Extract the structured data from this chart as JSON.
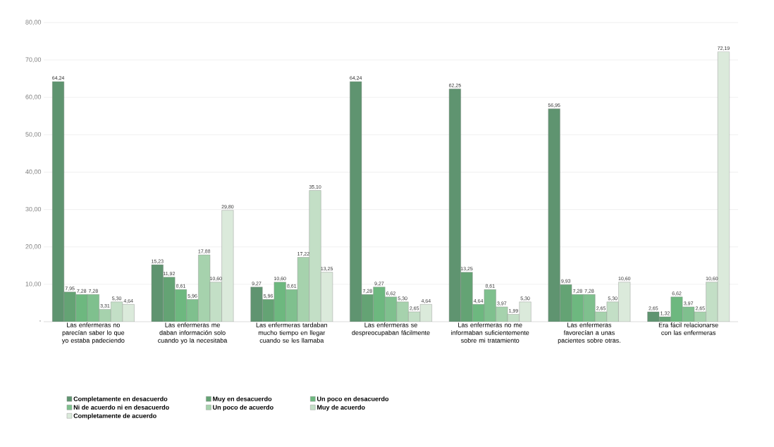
{
  "chart_data": {
    "type": "bar",
    "categories": [
      "Las enfermeras no parecían saber lo que yo estaba padeciendo",
      "Las enfermeras me daban información solo cuando yo la necesitaba",
      "Las enfermeras tardaban mucho tiempo en llegar cuando se les llamaba",
      "Las enfermeras se despreocupaban fácilmente",
      "Las enfermeras no me informaban suficientemente sobre mi tratamiento",
      "Las enfermeras favorecían a unas pacientes sobre otras.",
      "Era fácil relacionarse con las enfermeras"
    ],
    "series": [
      {
        "name": "Completamente en desacuerdo",
        "color": "#5f9470",
        "values": [
          64.24,
          15.23,
          9.27,
          64.24,
          62.25,
          56.95,
          2.65
        ],
        "value_labels": [
          "64,24",
          "15,23",
          "9,27",
          "64,24",
          "62,25",
          "56,95",
          "2,65"
        ]
      },
      {
        "name": "Muy en desacuerdo",
        "color": "#64a374",
        "values": [
          7.95,
          11.92,
          5.96,
          7.28,
          13.25,
          9.93,
          1.32
        ],
        "value_labels": [
          "7,95",
          "11,92",
          "5,96",
          "7,28",
          "13,25",
          "9,93",
          "1,32"
        ]
      },
      {
        "name": "Un poco en desacuerdo",
        "color": "#6db87f",
        "values": [
          7.28,
          8.61,
          10.6,
          9.27,
          4.64,
          7.28,
          6.62
        ],
        "value_labels": [
          "7,28",
          "8,61",
          "10,60",
          "9,27",
          "4,64",
          "7,28",
          "6,62"
        ]
      },
      {
        "name": "Ni de acuerdo ni en desacuerdo",
        "color": "#7fc08e",
        "values": [
          7.28,
          5.96,
          8.61,
          6.62,
          8.61,
          7.28,
          3.97
        ],
        "value_labels": [
          "7,28",
          "5,96",
          "8,61",
          "6,62",
          "8,61",
          "7,28",
          "3,97"
        ]
      },
      {
        "name": "Un poco de acuerdo",
        "color": "#a6d2ad",
        "values": [
          3.31,
          17.88,
          17.22,
          5.3,
          3.97,
          2.65,
          2.65
        ],
        "value_labels": [
          "3,31",
          "17,88",
          "17,22",
          "5,30",
          "3,97",
          "2,65",
          "2,65"
        ]
      },
      {
        "name": "Muy de acuerdo",
        "color": "#c3dfc6",
        "values": [
          5.3,
          10.6,
          35.1,
          2.65,
          1.99,
          5.3,
          10.6
        ],
        "value_labels": [
          "5,30",
          "10,60",
          "35,10",
          "2,65",
          "1,99",
          "5,30",
          "10,60"
        ]
      },
      {
        "name": "Completamente de acuerdo",
        "color": "#dbeadb",
        "values": [
          4.64,
          29.8,
          13.25,
          4.64,
          5.3,
          10.6,
          72.19
        ],
        "value_labels": [
          "4,64",
          "29,80",
          "13,25",
          "4,64",
          "5,30",
          "10,60",
          "72,19"
        ]
      }
    ],
    "ylim": [
      0,
      80
    ],
    "yticks": [
      {
        "value": 0,
        "label": "-"
      },
      {
        "value": 10,
        "label": "10,00"
      },
      {
        "value": 20,
        "label": "20,00"
      },
      {
        "value": 30,
        "label": "30,00"
      },
      {
        "value": 40,
        "label": "40,00"
      },
      {
        "value": 50,
        "label": "50,00"
      },
      {
        "value": 60,
        "label": "60,00"
      },
      {
        "value": 70,
        "label": "70,00"
      },
      {
        "value": 80,
        "label": "80,00"
      }
    ],
    "grid": "y",
    "legend": "bottom"
  }
}
